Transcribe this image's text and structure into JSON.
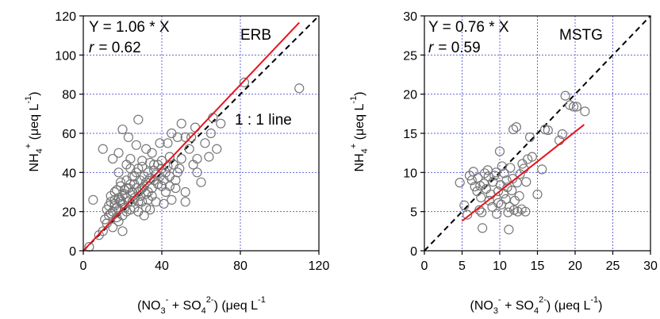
{
  "chart_data": [
    {
      "type": "scatter",
      "site": "ERB",
      "equation": "Y = 1.06 * X",
      "r_prefix": "r",
      "r_text": "=  0.62",
      "oneone_label": "1 : 1 line",
      "xlabel": {
        "pre": "(NO",
        "sub1": "3",
        "sup1": "-",
        "mid": " + SO",
        "sub2": "4",
        "sup2": "2-",
        "post": ") (μeq L",
        "sup3": "-1"
      },
      "ylabel": {
        "pre": "NH",
        "sub": "4",
        "sup": "+",
        "mid": " (μeq L",
        "sup2": "-1",
        "post": ")"
      },
      "xlim": [
        0,
        120
      ],
      "ylim": [
        0,
        120
      ],
      "xticks": [
        0,
        40,
        80,
        120
      ],
      "yticks": [
        0,
        20,
        40,
        60,
        80,
        100,
        120
      ],
      "grid": true,
      "fit_slope": 1.06,
      "fit_x": [
        0,
        110
      ],
      "colors": {
        "points": "#777777",
        "fit": "#e8141b",
        "oneone": "#000000",
        "grid": "#6666dd"
      },
      "points": [
        [
          3,
          2
        ],
        [
          5,
          26
        ],
        [
          8,
          8
        ],
        [
          10,
          10
        ],
        [
          10,
          52
        ],
        [
          11,
          16
        ],
        [
          12,
          21
        ],
        [
          12,
          14
        ],
        [
          13,
          23
        ],
        [
          13,
          18
        ],
        [
          14,
          19
        ],
        [
          14,
          25
        ],
        [
          14,
          28
        ],
        [
          15,
          47
        ],
        [
          15,
          12
        ],
        [
          15,
          20
        ],
        [
          16,
          23
        ],
        [
          16,
          30
        ],
        [
          16,
          26
        ],
        [
          17,
          22
        ],
        [
          17,
          31
        ],
        [
          17,
          17
        ],
        [
          18,
          27
        ],
        [
          18,
          21
        ],
        [
          18,
          40
        ],
        [
          18,
          50
        ],
        [
          18,
          15
        ],
        [
          19,
          25
        ],
        [
          19,
          33
        ],
        [
          19,
          35
        ],
        [
          20,
          18
        ],
        [
          20,
          24
        ],
        [
          20,
          28
        ],
        [
          20,
          62
        ],
        [
          20,
          10
        ],
        [
          21,
          22
        ],
        [
          21,
          29
        ],
        [
          21,
          31
        ],
        [
          22,
          20
        ],
        [
          22,
          27
        ],
        [
          22,
          36
        ],
        [
          22,
          44
        ],
        [
          23,
          25
        ],
        [
          23,
          58
        ],
        [
          23,
          32
        ],
        [
          24,
          42
        ],
        [
          24,
          21
        ],
        [
          24,
          47
        ],
        [
          24,
          34
        ],
        [
          25,
          25
        ],
        [
          25,
          30
        ],
        [
          25,
          38
        ],
        [
          26,
          27
        ],
        [
          26,
          22
        ],
        [
          26,
          34
        ],
        [
          27,
          32
        ],
        [
          27,
          40
        ],
        [
          27,
          54
        ],
        [
          28,
          25
        ],
        [
          28,
          30
        ],
        [
          28,
          67
        ],
        [
          28,
          20
        ],
        [
          29,
          28
        ],
        [
          29,
          36
        ],
        [
          29,
          31
        ],
        [
          30,
          32
        ],
        [
          30,
          25
        ],
        [
          30,
          43
        ],
        [
          30,
          46
        ],
        [
          31,
          33
        ],
        [
          31,
          38
        ],
        [
          31,
          18
        ],
        [
          32,
          29
        ],
        [
          32,
          35
        ],
        [
          32,
          52
        ],
        [
          33,
          30
        ],
        [
          33,
          40
        ],
        [
          33,
          26
        ],
        [
          34,
          37
        ],
        [
          34,
          45
        ],
        [
          34,
          21
        ],
        [
          35,
          32
        ],
        [
          35,
          50
        ],
        [
          35,
          28
        ],
        [
          36,
          41
        ],
        [
          36,
          36
        ],
        [
          37,
          39
        ],
        [
          37,
          25
        ],
        [
          38,
          44
        ],
        [
          38,
          34
        ],
        [
          39,
          55
        ],
        [
          39,
          38
        ],
        [
          40,
          33
        ],
        [
          40,
          42
        ],
        [
          40,
          46
        ],
        [
          41,
          36
        ],
        [
          41,
          24
        ],
        [
          42,
          40
        ],
        [
          42,
          30
        ],
        [
          43,
          43
        ],
        [
          43,
          55
        ],
        [
          44,
          38
        ],
        [
          44,
          48
        ],
        [
          45,
          26
        ],
        [
          45,
          60
        ],
        [
          46,
          44
        ],
        [
          47,
          32
        ],
        [
          47,
          36
        ],
        [
          48,
          58
        ],
        [
          48,
          40
        ],
        [
          49,
          42
        ],
        [
          50,
          65
        ],
        [
          50,
          47
        ],
        [
          52,
          30
        ],
        [
          52,
          25
        ],
        [
          54,
          52
        ],
        [
          55,
          58
        ],
        [
          56,
          44
        ],
        [
          57,
          63
        ],
        [
          58,
          40
        ],
        [
          58,
          47
        ],
        [
          60,
          35
        ],
        [
          62,
          55
        ],
        [
          64,
          48
        ],
        [
          65,
          60
        ],
        [
          66,
          68
        ],
        [
          68,
          52
        ],
        [
          70,
          65
        ],
        [
          82,
          86
        ],
        [
          110,
          83
        ],
        [
          36,
          44
        ],
        [
          32,
          22
        ],
        [
          26,
          38
        ],
        [
          22,
          32
        ],
        [
          19,
          26
        ],
        [
          16,
          24
        ],
        [
          28,
          42
        ],
        [
          44,
          33
        ],
        [
          52,
          58
        ]
      ]
    },
    {
      "type": "scatter",
      "site": "MSTG",
      "equation": "Y = 0.76 * X",
      "r_prefix": "r",
      "r_text": "=  0.59",
      "xlabel": {
        "pre": "(NO",
        "sub1": "3",
        "sup1": "-",
        "mid": " + SO",
        "sub2": "4",
        "sup2": "2-",
        "post": ") (μeq L",
        "sup3": "-1",
        "close": ")"
      },
      "ylabel": {
        "pre": "NH",
        "sub": "4",
        "sup": "+",
        "mid": " (μeq L",
        "sup2": "-1",
        "post": ")"
      },
      "xlim": [
        0,
        30
      ],
      "ylim": [
        0,
        30
      ],
      "xticks": [
        0,
        5,
        10,
        15,
        20,
        25,
        30
      ],
      "yticks": [
        0,
        5,
        10,
        15,
        20,
        25,
        30
      ],
      "grid": true,
      "fit_slope": 0.76,
      "fit_x": [
        5,
        21.2
      ],
      "colors": {
        "points": "#777777",
        "fit": "#e8141b",
        "oneone": "#000000",
        "grid": "#6666dd"
      },
      "points": [
        [
          4.7,
          8.7
        ],
        [
          5.3,
          5.8
        ],
        [
          5.7,
          4.6
        ],
        [
          6.0,
          9.6
        ],
        [
          6.3,
          9.0
        ],
        [
          6.5,
          10.1
        ],
        [
          6.7,
          8.2
        ],
        [
          7.0,
          7.6
        ],
        [
          7.1,
          9.3
        ],
        [
          7.3,
          5.2
        ],
        [
          7.5,
          6.8
        ],
        [
          7.6,
          4.9
        ],
        [
          7.7,
          2.9
        ],
        [
          7.9,
          8.6
        ],
        [
          8.0,
          9.9
        ],
        [
          8.2,
          7.9
        ],
        [
          8.4,
          10.3
        ],
        [
          8.6,
          6.4
        ],
        [
          8.8,
          7.2
        ],
        [
          9.0,
          5.6
        ],
        [
          9.1,
          8.8
        ],
        [
          9.3,
          9.6
        ],
        [
          9.5,
          10.0
        ],
        [
          9.6,
          4.7
        ],
        [
          9.8,
          6.1
        ],
        [
          10.0,
          12.7
        ],
        [
          10.1,
          8.4
        ],
        [
          10.2,
          5.9
        ],
        [
          10.3,
          10.8
        ],
        [
          10.5,
          7.3
        ],
        [
          10.6,
          9.9
        ],
        [
          10.8,
          6.6
        ],
        [
          11.0,
          8.1
        ],
        [
          11.1,
          4.9
        ],
        [
          11.2,
          2.7
        ],
        [
          11.3,
          5.6
        ],
        [
          11.4,
          10.6
        ],
        [
          11.6,
          7.7
        ],
        [
          11.7,
          9.2
        ],
        [
          11.8,
          15.5
        ],
        [
          11.9,
          5.2
        ],
        [
          12.0,
          6.4
        ],
        [
          12.2,
          15.8
        ],
        [
          12.3,
          8.7
        ],
        [
          12.4,
          5.0
        ],
        [
          12.6,
          7.0
        ],
        [
          12.7,
          9.8
        ],
        [
          12.9,
          5.3
        ],
        [
          13.0,
          11.1
        ],
        [
          13.2,
          10.5
        ],
        [
          13.4,
          5.0
        ],
        [
          13.5,
          8.8
        ],
        [
          13.7,
          11.7
        ],
        [
          14.0,
          14.5
        ],
        [
          14.3,
          12.0
        ],
        [
          15.0,
          7.2
        ],
        [
          15.6,
          10.4
        ],
        [
          16.0,
          15.5
        ],
        [
          16.4,
          15.4
        ],
        [
          17.9,
          14.1
        ],
        [
          18.3,
          14.9
        ],
        [
          18.7,
          19.8
        ],
        [
          19.3,
          18.6
        ],
        [
          19.8,
          18.4
        ],
        [
          20.2,
          18.4
        ],
        [
          21.3,
          17.8
        ],
        [
          8.5,
          9.5
        ],
        [
          9.8,
          7.6
        ],
        [
          10.9,
          9.0
        ],
        [
          7.4,
          8.3
        ]
      ]
    }
  ]
}
